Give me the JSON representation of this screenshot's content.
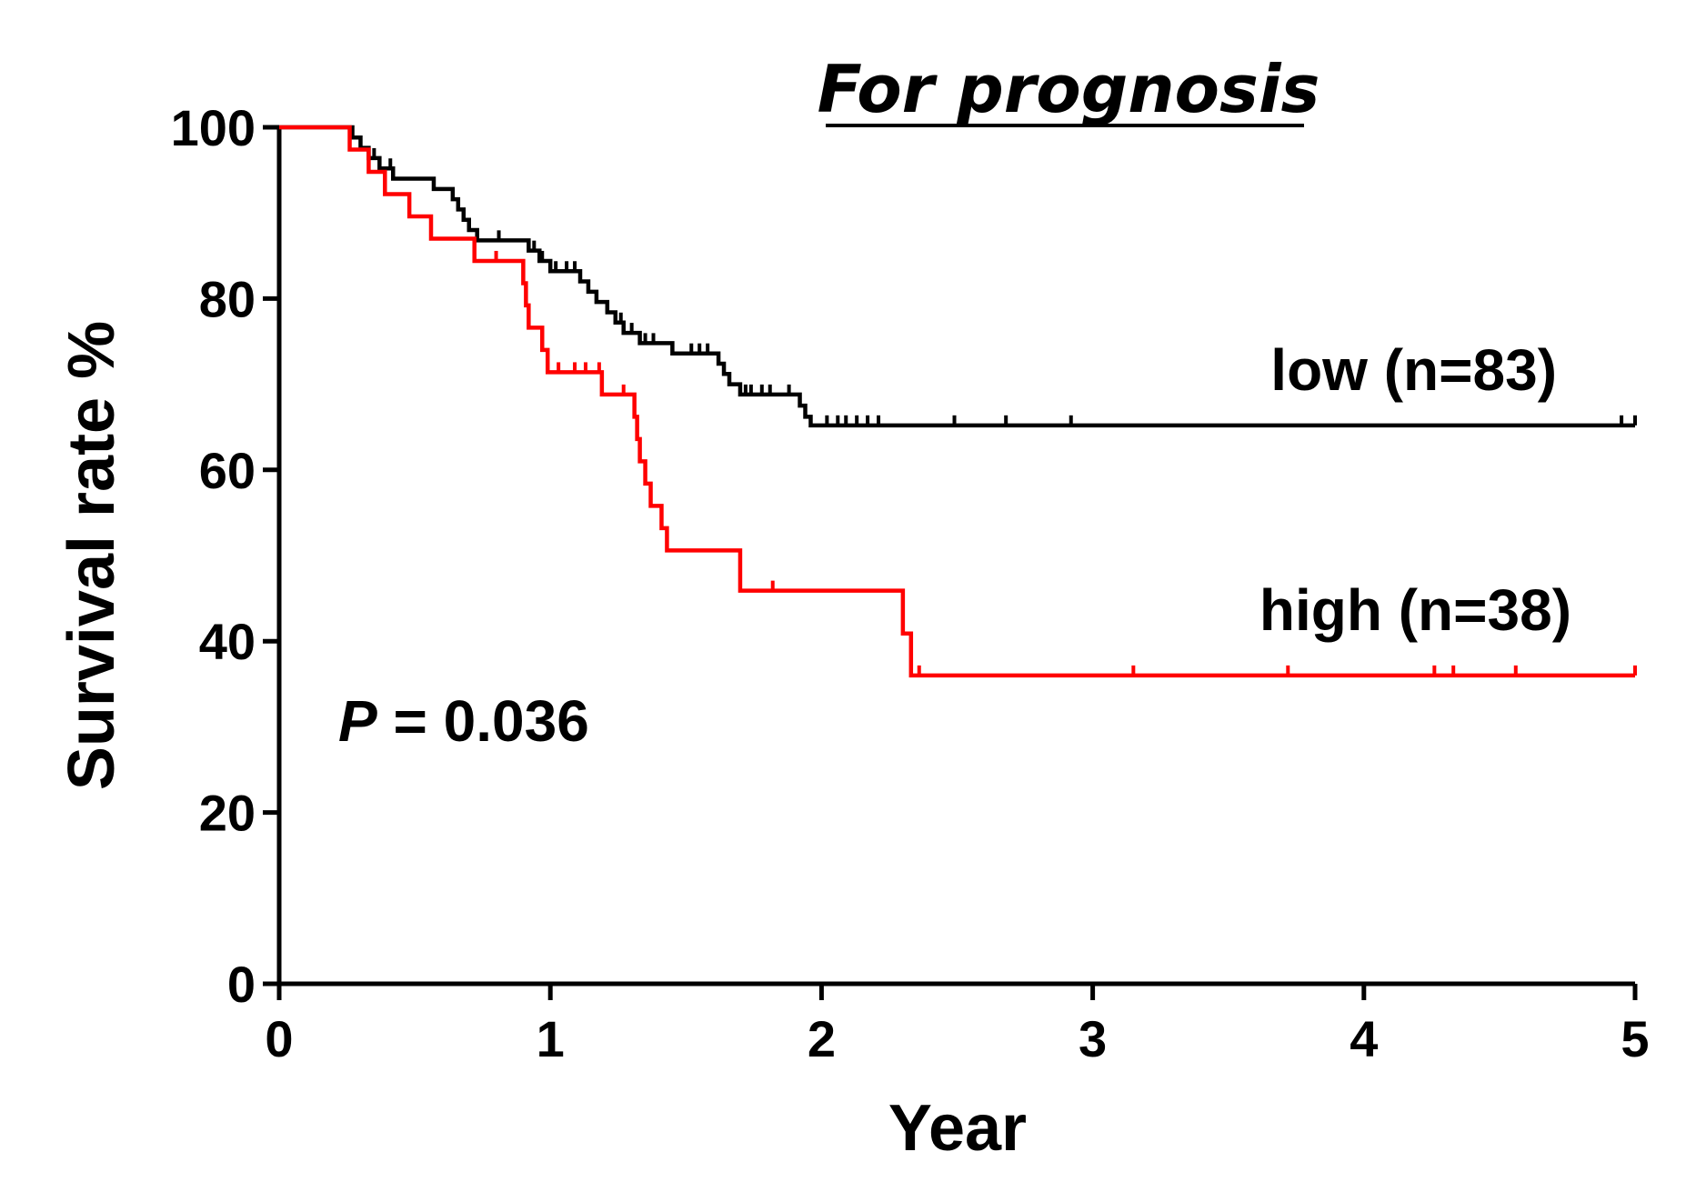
{
  "chart_data": {
    "type": "line",
    "subtype": "kaplan-meier step",
    "title": "For prognosis",
    "title_style": "italic underlined",
    "xlabel": "Year",
    "ylabel": "Survival rate %",
    "xlim": [
      0,
      5
    ],
    "ylim": [
      0,
      100
    ],
    "x_ticks": [
      0,
      1,
      2,
      3,
      4,
      5
    ],
    "y_ticks": [
      0,
      20,
      40,
      60,
      80,
      100
    ],
    "x_tick_labels": [
      "0",
      "1",
      "2",
      "3",
      "4",
      "5"
    ],
    "y_tick_labels": [
      "0",
      "20",
      "40",
      "60",
      "80",
      "100"
    ],
    "grid": false,
    "annotation": {
      "p_symbol": "P",
      "p_rest": " = 0.036"
    },
    "series": [
      {
        "name": "low (n=83)",
        "color": "#000000",
        "steps": [
          [
            0,
            100
          ],
          [
            0.27,
            98.8
          ],
          [
            0.3,
            97.6
          ],
          [
            0.33,
            96.4
          ],
          [
            0.37,
            95.2
          ],
          [
            0.42,
            94.0
          ],
          [
            0.57,
            92.8
          ],
          [
            0.64,
            91.6
          ],
          [
            0.66,
            90.4
          ],
          [
            0.68,
            89.2
          ],
          [
            0.7,
            88.0
          ],
          [
            0.73,
            86.8
          ],
          [
            0.8,
            86.8
          ],
          [
            0.92,
            85.6
          ],
          [
            0.96,
            84.4
          ],
          [
            1.0,
            83.2
          ],
          [
            1.11,
            82.0
          ],
          [
            1.14,
            80.8
          ],
          [
            1.17,
            79.6
          ],
          [
            1.21,
            78.4
          ],
          [
            1.24,
            77.2
          ],
          [
            1.27,
            76.0
          ],
          [
            1.33,
            74.8
          ],
          [
            1.41,
            74.8
          ],
          [
            1.45,
            73.6
          ],
          [
            1.56,
            73.6
          ],
          [
            1.62,
            72.4
          ],
          [
            1.64,
            71.2
          ],
          [
            1.66,
            70.0
          ],
          [
            1.7,
            68.8
          ],
          [
            1.84,
            68.8
          ],
          [
            1.92,
            67.5
          ],
          [
            1.94,
            66.2
          ],
          [
            1.96,
            65.2
          ],
          [
            5.0,
            65.2
          ]
        ],
        "censor_x": [
          0.27,
          0.35,
          0.41,
          0.81,
          0.94,
          0.97,
          1.02,
          1.06,
          1.09,
          1.21,
          1.26,
          1.3,
          1.35,
          1.38,
          1.52,
          1.55,
          1.58,
          1.72,
          1.74,
          1.78,
          1.81,
          1.88,
          2.02,
          2.06,
          2.09,
          2.13,
          2.17,
          2.21,
          2.49,
          2.68,
          2.92,
          4.95,
          5.0
        ]
      },
      {
        "name": "high (n=38)",
        "color": "#ff0000",
        "steps": [
          [
            0,
            100
          ],
          [
            0.26,
            97.4
          ],
          [
            0.33,
            94.8
          ],
          [
            0.39,
            92.2
          ],
          [
            0.48,
            89.6
          ],
          [
            0.56,
            87.0
          ],
          [
            0.72,
            84.4
          ],
          [
            0.9,
            81.8
          ],
          [
            0.91,
            79.2
          ],
          [
            0.92,
            76.6
          ],
          [
            0.97,
            74.0
          ],
          [
            0.99,
            71.4
          ],
          [
            1.01,
            71.4
          ],
          [
            1.19,
            68.8
          ],
          [
            1.31,
            66.2
          ],
          [
            1.32,
            63.6
          ],
          [
            1.33,
            61.0
          ],
          [
            1.35,
            58.4
          ],
          [
            1.37,
            55.8
          ],
          [
            1.41,
            53.2
          ],
          [
            1.43,
            50.6
          ],
          [
            1.7,
            45.9
          ],
          [
            2.3,
            40.9
          ],
          [
            2.33,
            36.0
          ],
          [
            5.0,
            36.0
          ]
        ],
        "censor_x": [
          0.8,
          0.99,
          1.03,
          1.09,
          1.13,
          1.18,
          1.27,
          1.82,
          2.36,
          3.15,
          3.72,
          4.26,
          4.33,
          4.56,
          5.0
        ]
      }
    ]
  }
}
